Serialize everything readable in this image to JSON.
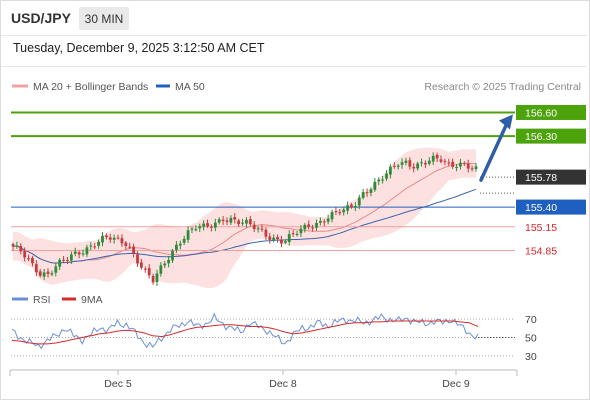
{
  "header": {
    "symbol": "USD/JPY",
    "timeframe": "30 MIN",
    "datetime": "Tuesday, December 9, 2025 3:12:50 AM CET"
  },
  "legend": {
    "ma20_label": "MA 20 + Bollinger Bands",
    "ma50_label": "MA 50",
    "source": "Research © 2025 Trading Central"
  },
  "colors": {
    "green": "#4ca30b",
    "blue": "#1f5fbf",
    "red_line": "#f0a0a0",
    "red_text": "#d9262c",
    "dark": "#333333",
    "candle_up": "#2e8b3a",
    "candle_down": "#c43c3c",
    "band": "#fde1e1",
    "ma20": "#e88a8a",
    "ma50": "#3a64b0",
    "rsi": "#6b8fd6",
    "rsi_ma": "#d42b2b",
    "arrow": "#2e5ea8"
  },
  "chart_data": [
    {
      "type": "candlestick",
      "title": "",
      "price_range": [
        154.45,
        156.72
      ],
      "current_price": 155.78,
      "levels": [
        {
          "name": "resistance-2",
          "value": 156.6,
          "label": "156.60",
          "style": "green"
        },
        {
          "name": "resistance-1",
          "value": 156.3,
          "label": "156.30",
          "style": "green"
        },
        {
          "name": "pivot",
          "value": 155.4,
          "label": "155.40",
          "style": "blue"
        },
        {
          "name": "support-1",
          "value": 155.15,
          "label": "155.15",
          "style": "red"
        },
        {
          "name": "support-2",
          "value": 154.85,
          "label": "154.85",
          "style": "red"
        }
      ],
      "x_ticks": [
        "Dec 5",
        "Dec 8",
        "Dec 9"
      ],
      "arrow": {
        "from": 155.78,
        "to": 156.6
      },
      "close_path": [
        154.88,
        154.82,
        154.7,
        154.58,
        154.55,
        154.65,
        154.72,
        154.8,
        154.86,
        154.92,
        154.98,
        155.0,
        154.97,
        154.95,
        154.78,
        154.6,
        154.45,
        154.62,
        154.8,
        154.97,
        155.08,
        155.14,
        155.13,
        155.18,
        155.27,
        155.25,
        155.2,
        155.17,
        155.12,
        155.06,
        155.0,
        154.96,
        155.03,
        155.11,
        155.18,
        155.21,
        155.27,
        155.32,
        155.35,
        155.43,
        155.58,
        155.66,
        155.73,
        155.83,
        155.96,
        155.98,
        155.93,
        155.95,
        155.99,
        156.0,
        155.94,
        155.97,
        155.92,
        155.86
      ]
    },
    {
      "type": "line",
      "title": "",
      "series": [
        {
          "name": "RSI",
          "values": [
            57,
            50,
            44,
            41,
            46,
            52,
            60,
            52,
            48,
            53,
            61,
            58,
            66,
            64,
            55,
            45,
            39,
            50,
            58,
            63,
            68,
            62,
            65,
            71,
            65,
            60,
            56,
            66,
            62,
            58,
            50,
            44,
            53,
            60,
            62,
            66,
            63,
            67,
            70,
            68,
            66,
            69,
            72,
            70,
            68,
            71,
            67,
            65,
            68,
            66,
            70,
            62,
            55,
            50
          ]
        },
        {
          "name": "9MA",
          "values": [
            47,
            46,
            44,
            43,
            43,
            44,
            46,
            48,
            50,
            52,
            54,
            55,
            57,
            58,
            57,
            55,
            52,
            51,
            53,
            56,
            59,
            61,
            62,
            63,
            64,
            64,
            63,
            62,
            62,
            61,
            59,
            56,
            54,
            55,
            57,
            59,
            61,
            63,
            65,
            66,
            66,
            67,
            67,
            68,
            68,
            68,
            68,
            68,
            68,
            68,
            68,
            67,
            66,
            62
          ]
        }
      ],
      "y_ticks": [
        "70",
        "50",
        "30"
      ],
      "ylim": [
        20,
        80
      ]
    }
  ]
}
